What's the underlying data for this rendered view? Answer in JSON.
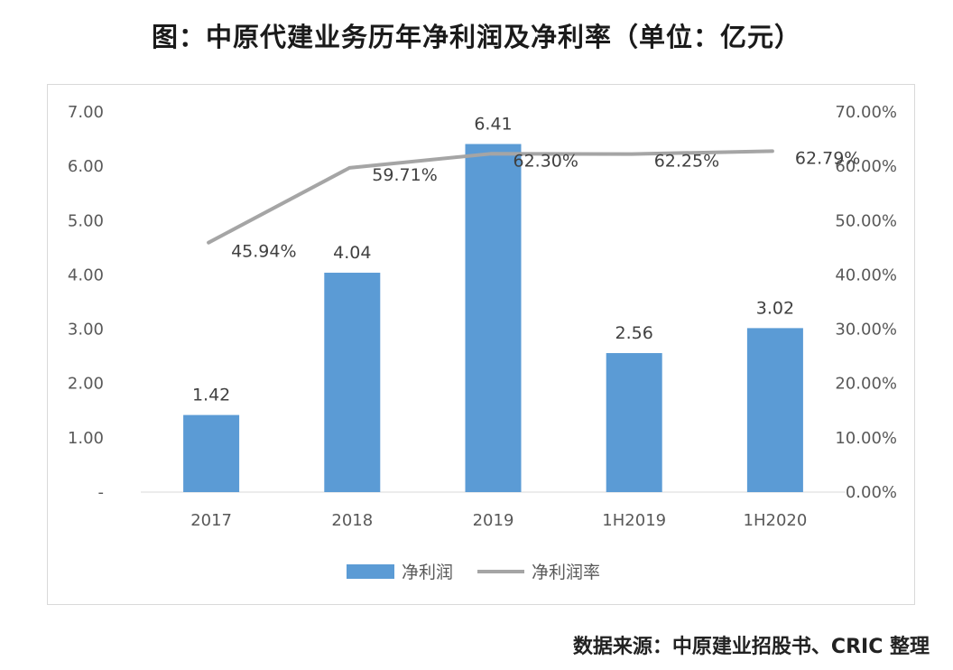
{
  "title": "图：中原代建业务历年净利润及净利率（单位：亿元）",
  "source": "数据来源：中原建业招股书、CRIC 整理",
  "colors": {
    "bar": "#5B9BD5",
    "line": "#A5A5A5"
  },
  "chart_data": {
    "type": "bar",
    "categories": [
      "2017",
      "2018",
      "2019",
      "1H2019",
      "1H2020"
    ],
    "series": [
      {
        "name": "净利润",
        "type": "bar",
        "axis": "left",
        "values": [
          1.42,
          4.04,
          6.41,
          2.56,
          3.02
        ],
        "labels": [
          "1.42",
          "4.04",
          "6.41",
          "2.56",
          "3.02"
        ]
      },
      {
        "name": "净利润率",
        "type": "line",
        "axis": "right",
        "values": [
          45.94,
          59.71,
          62.3,
          62.25,
          62.79
        ],
        "labels": [
          "45.94%",
          "59.71%",
          "62.30%",
          "62.25%",
          "62.79%"
        ]
      }
    ],
    "y_left": {
      "min": 0,
      "max": 7,
      "ticks": [
        "-",
        "1.00",
        "2.00",
        "3.00",
        "4.00",
        "5.00",
        "6.00",
        "7.00"
      ]
    },
    "y_right": {
      "min": 0,
      "max": 70,
      "ticks": [
        "0.00%",
        "10.00%",
        "20.00%",
        "30.00%",
        "40.00%",
        "50.00%",
        "60.00%",
        "70.00%"
      ]
    },
    "legend_position": "bottom",
    "grid": false
  }
}
